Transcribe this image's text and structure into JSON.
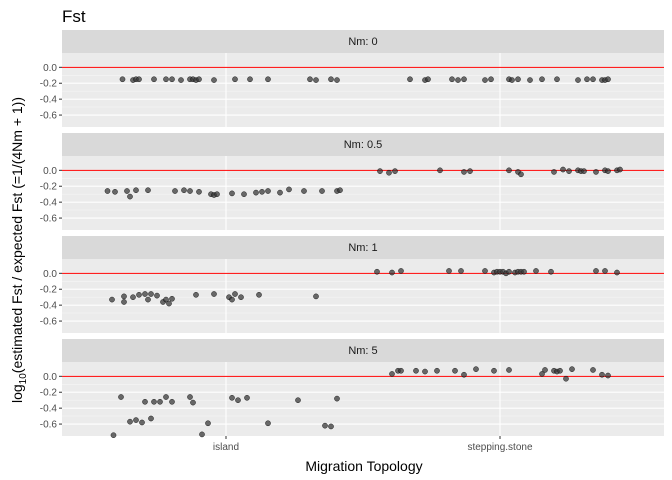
{
  "chart_data": {
    "type": "scatter",
    "title": "Fst",
    "xlabel": "Migration Topology",
    "ylabel_parts": {
      "prefix": "log",
      "subscript": "10",
      "suffix": "(estimated Fst / expected Fst (=1/(4Nm + 1))"
    },
    "categories": [
      "island",
      "stepping.stone"
    ],
    "ylim": [
      -0.75,
      0.18
    ],
    "yticks": [
      0.0,
      -0.2,
      -0.4,
      -0.6
    ],
    "ytick_labels": [
      "0.0",
      "-0.2",
      "-0.4",
      "-0.6"
    ],
    "reference_line": 0.0,
    "grid": true,
    "facet_label_prefix": "Nm: ",
    "panels": [
      {
        "facet": "0",
        "series": [
          {
            "category": "island",
            "points": [
              {
                "x": -0.345,
                "y": -0.15
              },
              {
                "x": -0.31,
                "y": -0.16
              },
              {
                "x": -0.3,
                "y": -0.15
              },
              {
                "x": -0.29,
                "y": -0.15
              },
              {
                "x": -0.24,
                "y": -0.15
              },
              {
                "x": -0.2,
                "y": -0.15
              },
              {
                "x": -0.18,
                "y": -0.15
              },
              {
                "x": -0.15,
                "y": -0.16
              },
              {
                "x": -0.12,
                "y": -0.15
              },
              {
                "x": -0.11,
                "y": -0.15
              },
              {
                "x": -0.1,
                "y": -0.16
              },
              {
                "x": -0.09,
                "y": -0.15
              },
              {
                "x": -0.04,
                "y": -0.16
              },
              {
                "x": 0.03,
                "y": -0.15
              },
              {
                "x": 0.08,
                "y": -0.15
              },
              {
                "x": 0.14,
                "y": -0.15
              },
              {
                "x": 0.28,
                "y": -0.15
              },
              {
                "x": 0.3,
                "y": -0.16
              },
              {
                "x": 0.35,
                "y": -0.15
              },
              {
                "x": 0.37,
                "y": -0.16
              }
            ]
          },
          {
            "category": "stepping.stone",
            "points": [
              {
                "x": -0.3,
                "y": -0.15
              },
              {
                "x": -0.25,
                "y": -0.16
              },
              {
                "x": -0.24,
                "y": -0.15
              },
              {
                "x": -0.16,
                "y": -0.15
              },
              {
                "x": -0.14,
                "y": -0.16
              },
              {
                "x": -0.12,
                "y": -0.15
              },
              {
                "x": -0.05,
                "y": -0.16
              },
              {
                "x": -0.03,
                "y": -0.15
              },
              {
                "x": 0.03,
                "y": -0.15
              },
              {
                "x": 0.04,
                "y": -0.16
              },
              {
                "x": 0.06,
                "y": -0.15
              },
              {
                "x": 0.1,
                "y": -0.16
              },
              {
                "x": 0.14,
                "y": -0.15
              },
              {
                "x": 0.19,
                "y": -0.15
              },
              {
                "x": 0.26,
                "y": -0.16
              },
              {
                "x": 0.29,
                "y": -0.15
              },
              {
                "x": 0.31,
                "y": -0.15
              },
              {
                "x": 0.34,
                "y": -0.16
              },
              {
                "x": 0.35,
                "y": -0.16
              },
              {
                "x": 0.36,
                "y": -0.15
              }
            ]
          }
        ]
      },
      {
        "facet": "0.5",
        "series": [
          {
            "category": "island",
            "points": [
              {
                "x": -0.395,
                "y": -0.26
              },
              {
                "x": -0.37,
                "y": -0.27
              },
              {
                "x": -0.33,
                "y": -0.26
              },
              {
                "x": -0.32,
                "y": -0.33
              },
              {
                "x": -0.3,
                "y": -0.25
              },
              {
                "x": -0.26,
                "y": -0.25
              },
              {
                "x": -0.17,
                "y": -0.26
              },
              {
                "x": -0.14,
                "y": -0.25
              },
              {
                "x": -0.12,
                "y": -0.26
              },
              {
                "x": -0.09,
                "y": -0.27
              },
              {
                "x": -0.05,
                "y": -0.3
              },
              {
                "x": -0.04,
                "y": -0.31
              },
              {
                "x": -0.03,
                "y": -0.3
              },
              {
                "x": 0.02,
                "y": -0.29
              },
              {
                "x": 0.06,
                "y": -0.3
              },
              {
                "x": 0.1,
                "y": -0.28
              },
              {
                "x": 0.12,
                "y": -0.27
              },
              {
                "x": 0.14,
                "y": -0.26
              },
              {
                "x": 0.18,
                "y": -0.28
              },
              {
                "x": 0.21,
                "y": -0.24
              },
              {
                "x": 0.26,
                "y": -0.26
              },
              {
                "x": 0.32,
                "y": -0.26
              },
              {
                "x": 0.37,
                "y": -0.26
              },
              {
                "x": 0.38,
                "y": -0.25
              }
            ]
          },
          {
            "category": "stepping.stone",
            "points": [
              {
                "x": -0.4,
                "y": -0.01
              },
              {
                "x": -0.37,
                "y": -0.03
              },
              {
                "x": -0.35,
                "y": -0.01
              },
              {
                "x": -0.2,
                "y": 0.0
              },
              {
                "x": -0.12,
                "y": -0.02
              },
              {
                "x": -0.1,
                "y": -0.01
              },
              {
                "x": 0.03,
                "y": 0.0
              },
              {
                "x": 0.06,
                "y": -0.02
              },
              {
                "x": 0.07,
                "y": -0.05
              },
              {
                "x": 0.18,
                "y": -0.02
              },
              {
                "x": 0.21,
                "y": 0.01
              },
              {
                "x": 0.23,
                "y": -0.01
              },
              {
                "x": 0.26,
                "y": 0.0
              },
              {
                "x": 0.27,
                "y": -0.01
              },
              {
                "x": 0.28,
                "y": -0.01
              },
              {
                "x": 0.32,
                "y": -0.02
              },
              {
                "x": 0.35,
                "y": 0.0
              },
              {
                "x": 0.36,
                "y": -0.01
              },
              {
                "x": 0.39,
                "y": 0.0
              },
              {
                "x": 0.4,
                "y": 0.01
              }
            ]
          }
        ]
      },
      {
        "facet": "1",
        "series": [
          {
            "category": "island",
            "points": [
              {
                "x": -0.38,
                "y": -0.33
              },
              {
                "x": -0.34,
                "y": -0.29
              },
              {
                "x": -0.34,
                "y": -0.36
              },
              {
                "x": -0.31,
                "y": -0.3
              },
              {
                "x": -0.29,
                "y": -0.27
              },
              {
                "x": -0.27,
                "y": -0.26
              },
              {
                "x": -0.26,
                "y": -0.33
              },
              {
                "x": -0.25,
                "y": -0.26
              },
              {
                "x": -0.23,
                "y": -0.28
              },
              {
                "x": -0.21,
                "y": -0.36
              },
              {
                "x": -0.2,
                "y": -0.33
              },
              {
                "x": -0.19,
                "y": -0.38
              },
              {
                "x": -0.18,
                "y": -0.32
              },
              {
                "x": -0.1,
                "y": -0.27
              },
              {
                "x": -0.04,
                "y": -0.26
              },
              {
                "x": 0.01,
                "y": -0.3
              },
              {
                "x": 0.02,
                "y": -0.33
              },
              {
                "x": 0.03,
                "y": -0.26
              },
              {
                "x": 0.05,
                "y": -0.3
              },
              {
                "x": 0.11,
                "y": -0.27
              },
              {
                "x": 0.3,
                "y": -0.29
              }
            ]
          },
          {
            "category": "stepping.stone",
            "points": [
              {
                "x": -0.41,
                "y": 0.02
              },
              {
                "x": -0.36,
                "y": 0.01
              },
              {
                "x": -0.33,
                "y": 0.03
              },
              {
                "x": -0.17,
                "y": 0.03
              },
              {
                "x": -0.13,
                "y": 0.03
              },
              {
                "x": -0.05,
                "y": 0.03
              },
              {
                "x": -0.02,
                "y": 0.01
              },
              {
                "x": -0.01,
                "y": 0.02
              },
              {
                "x": 0.0,
                "y": 0.02
              },
              {
                "x": 0.01,
                "y": 0.02
              },
              {
                "x": 0.02,
                "y": 0.0
              },
              {
                "x": 0.03,
                "y": 0.02
              },
              {
                "x": 0.05,
                "y": 0.01
              },
              {
                "x": 0.06,
                "y": 0.02
              },
              {
                "x": 0.07,
                "y": 0.02
              },
              {
                "x": 0.08,
                "y": 0.02
              },
              {
                "x": 0.12,
                "y": 0.03
              },
              {
                "x": 0.17,
                "y": 0.02
              },
              {
                "x": 0.32,
                "y": 0.03
              },
              {
                "x": 0.35,
                "y": 0.03
              },
              {
                "x": 0.39,
                "y": 0.01
              }
            ]
          }
        ]
      },
      {
        "facet": "5",
        "series": [
          {
            "category": "island",
            "points": [
              {
                "x": -0.375,
                "y": -0.74
              },
              {
                "x": -0.35,
                "y": -0.26
              },
              {
                "x": -0.32,
                "y": -0.57
              },
              {
                "x": -0.3,
                "y": -0.55
              },
              {
                "x": -0.28,
                "y": -0.58
              },
              {
                "x": -0.27,
                "y": -0.32
              },
              {
                "x": -0.25,
                "y": -0.53
              },
              {
                "x": -0.24,
                "y": -0.32
              },
              {
                "x": -0.22,
                "y": -0.32
              },
              {
                "x": -0.2,
                "y": -0.26
              },
              {
                "x": -0.18,
                "y": -0.32
              },
              {
                "x": -0.12,
                "y": -0.26
              },
              {
                "x": -0.11,
                "y": -0.33
              },
              {
                "x": -0.08,
                "y": -0.73
              },
              {
                "x": -0.06,
                "y": -0.59
              },
              {
                "x": 0.02,
                "y": -0.27
              },
              {
                "x": 0.04,
                "y": -0.3
              },
              {
                "x": 0.07,
                "y": -0.27
              },
              {
                "x": 0.14,
                "y": -0.59
              },
              {
                "x": 0.24,
                "y": -0.3
              },
              {
                "x": 0.33,
                "y": -0.62
              },
              {
                "x": 0.35,
                "y": -0.63
              },
              {
                "x": 0.37,
                "y": -0.28
              }
            ]
          },
          {
            "category": "stepping.stone",
            "points": [
              {
                "x": -0.36,
                "y": 0.03
              },
              {
                "x": -0.34,
                "y": 0.07
              },
              {
                "x": -0.33,
                "y": 0.07
              },
              {
                "x": -0.28,
                "y": 0.07
              },
              {
                "x": -0.25,
                "y": 0.06
              },
              {
                "x": -0.21,
                "y": 0.07
              },
              {
                "x": -0.15,
                "y": 0.07
              },
              {
                "x": -0.12,
                "y": 0.02
              },
              {
                "x": -0.08,
                "y": 0.09
              },
              {
                "x": -0.02,
                "y": 0.07
              },
              {
                "x": 0.03,
                "y": 0.08
              },
              {
                "x": 0.14,
                "y": 0.03
              },
              {
                "x": 0.15,
                "y": 0.08
              },
              {
                "x": 0.18,
                "y": 0.07
              },
              {
                "x": 0.19,
                "y": 0.06
              },
              {
                "x": 0.2,
                "y": 0.07
              },
              {
                "x": 0.22,
                "y": -0.03
              },
              {
                "x": 0.24,
                "y": 0.09
              },
              {
                "x": 0.31,
                "y": 0.08
              },
              {
                "x": 0.34,
                "y": 0.02
              },
              {
                "x": 0.36,
                "y": 0.01
              }
            ]
          }
        ]
      }
    ],
    "colors": {
      "panel_background": "#ebebeb",
      "strip_background": "#d9d9d9",
      "grid_major": "#ffffff",
      "grid_minor": "#f5f5f5",
      "point_fill": "#333333",
      "point_stroke": "#000000",
      "reference_line": "#ff0000",
      "tick_text": "#4d4d4d"
    }
  }
}
